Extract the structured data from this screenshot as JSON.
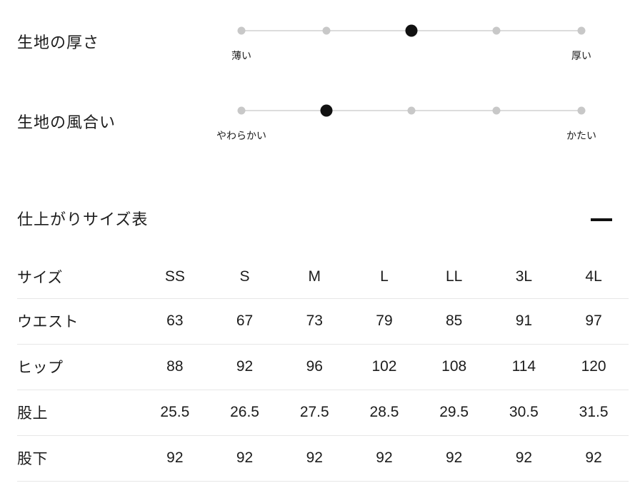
{
  "fabric_attributes": {
    "scales": [
      {
        "label": "生地の厚さ",
        "min_label": "薄い",
        "max_label": "厚い",
        "levels": 5,
        "selected": 3
      },
      {
        "label": "生地の風合い",
        "min_label": "やわらかい",
        "max_label": "かたい",
        "levels": 5,
        "selected": 2
      }
    ]
  },
  "size_section": {
    "title": "仕上がりサイズ表",
    "collapse_icon": "minus-icon"
  },
  "size_table": {
    "header": [
      "サイズ",
      "SS",
      "S",
      "M",
      "L",
      "LL",
      "3L",
      "4L"
    ],
    "rows": [
      {
        "label": "ウエスト",
        "values": [
          "63",
          "67",
          "73",
          "79",
          "85",
          "91",
          "97"
        ]
      },
      {
        "label": "ヒップ",
        "values": [
          "88",
          "92",
          "96",
          "102",
          "108",
          "114",
          "120"
        ]
      },
      {
        "label": "股上",
        "values": [
          "25.5",
          "26.5",
          "27.5",
          "28.5",
          "29.5",
          "30.5",
          "31.5"
        ]
      },
      {
        "label": "股下",
        "values": [
          "92",
          "92",
          "92",
          "92",
          "92",
          "92",
          "92"
        ]
      }
    ]
  },
  "colors": {
    "text": "#1c1c1c",
    "track": "#dcdcdc",
    "dot_inactive": "#c8c8c8",
    "dot_active": "#111111",
    "border": "#e7e7e7"
  }
}
